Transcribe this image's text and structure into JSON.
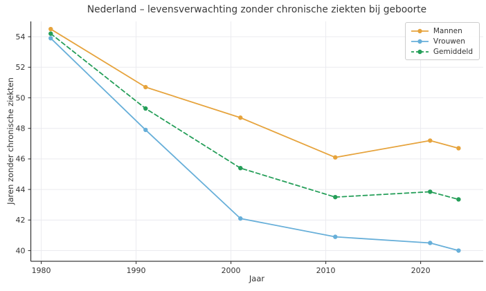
{
  "chart_data": {
    "type": "line",
    "title": "Nederland – levensverwachting zonder chronische ziekten bij geboorte",
    "xlabel": "Jaar",
    "ylabel": "Jaren zonder chronische ziekten",
    "x": [
      1981,
      1991,
      2001,
      2011,
      2021,
      2024
    ],
    "series": [
      {
        "name": "Mannen",
        "values": [
          54.5,
          50.7,
          48.7,
          46.1,
          47.2,
          46.7
        ],
        "color": "#e6a33c",
        "line_style": "solid"
      },
      {
        "name": "Vrouwen",
        "values": [
          53.9,
          47.9,
          42.1,
          40.9,
          40.5,
          40.0
        ],
        "color": "#67afd9",
        "line_style": "solid"
      },
      {
        "name": "Gemiddeld",
        "values": [
          54.2,
          49.3,
          45.4,
          43.5,
          43.85,
          43.35
        ],
        "color": "#249e58",
        "line_style": "dashed"
      }
    ],
    "x_ticks": [
      1980,
      1990,
      2000,
      2010,
      2020
    ],
    "y_ticks": [
      40,
      42,
      44,
      46,
      48,
      50,
      52,
      54
    ],
    "xlim": [
      1978.9,
      2026.6
    ],
    "ylim": [
      39.3,
      55.0
    ],
    "grid": true,
    "legend_position": "upper right",
    "colors": {
      "grid": "#eaeaef",
      "spine": "#3b3b3b",
      "tick_label": "#333333",
      "title": "#3a3a3a",
      "legend_border": "#cccccc",
      "legend_bg": "#ffffff",
      "background": "#ffffff"
    }
  }
}
